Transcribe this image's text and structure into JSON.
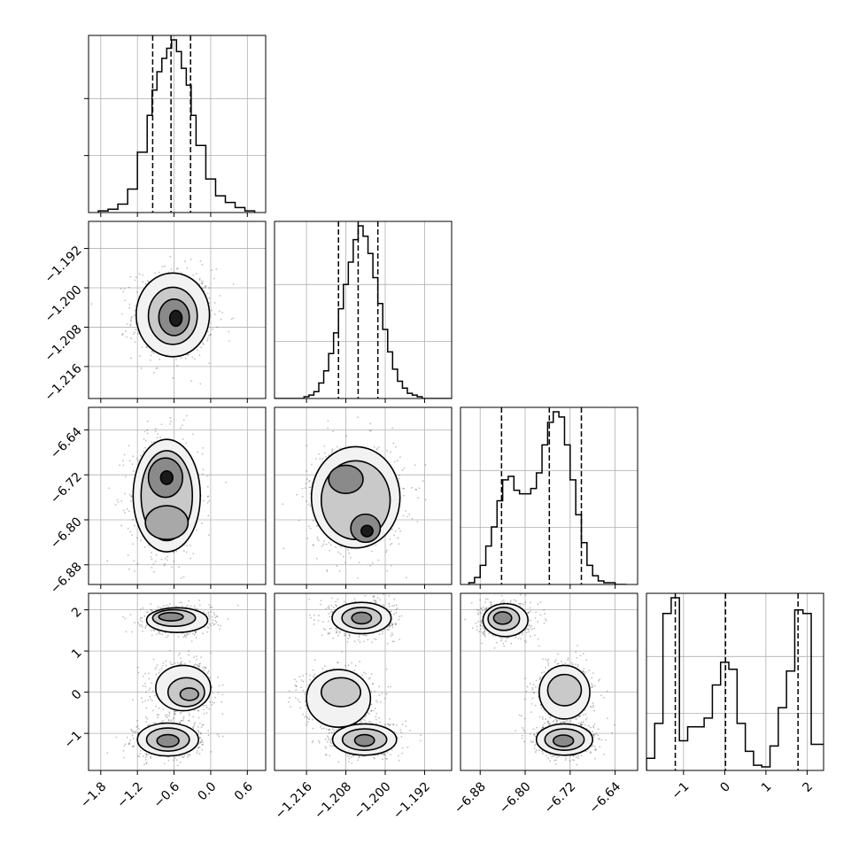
{
  "chart_data": {
    "type": "corner",
    "description_note": "",
    "parameters": [
      {
        "range": [
          -2.0,
          0.9
        ],
        "ticks": [
          -1.8,
          -1.2,
          -0.6,
          0.0,
          0.6
        ],
        "tick_labels": [
          "−1.8",
          "−1.2",
          "−0.6",
          "0.0",
          "0.6"
        ],
        "quantiles": [
          -0.95,
          -0.65,
          -0.33
        ],
        "histogram": {
          "edges": [
            -1.84,
            -1.68,
            -1.52,
            -1.36,
            -1.2,
            -1.04,
            -0.96,
            -0.88,
            -0.8,
            -0.72,
            -0.64,
            -0.56,
            -0.48,
            -0.4,
            -0.32,
            -0.24,
            -0.08,
            0.08,
            0.24,
            0.4,
            0.56,
            0.72
          ],
          "counts": [
            1,
            2,
            5,
            14,
            36,
            58,
            73,
            84,
            92,
            98,
            103,
            96,
            86,
            76,
            58,
            40,
            20,
            10,
            6,
            3,
            1
          ]
        }
      },
      {
        "range": [
          -1.2225,
          -1.1865
        ],
        "ticks": [
          -1.216,
          -1.208,
          -1.2,
          -1.192
        ],
        "tick_labels": [
          "−1.216",
          "−1.208",
          "−1.200",
          "−1.192"
        ],
        "quantiles": [
          -1.2095,
          -1.2055,
          -1.2015
        ],
        "histogram": {
          "edges": [
            -1.2225,
            -1.2215,
            -1.2205,
            -1.2195,
            -1.2185,
            -1.2175,
            -1.2165,
            -1.2155,
            -1.2145,
            -1.2135,
            -1.2125,
            -1.2115,
            -1.2105,
            -1.2095,
            -1.2085,
            -1.2075,
            -1.2065,
            -1.2055,
            -1.2045,
            -1.2035,
            -1.2025,
            -1.2015,
            -1.2005,
            -1.1995,
            -1.1985,
            -1.1975,
            -1.1965,
            -1.1955,
            -1.1945,
            -1.1935,
            -1.1925,
            -1.1915,
            -1.1905,
            -1.1895,
            -1.1885,
            -1.1875,
            -1.1865
          ],
          "counts": [
            0,
            0,
            0,
            0,
            0,
            0,
            1,
            2,
            4,
            9,
            16,
            26,
            38,
            52,
            66,
            79,
            92,
            100,
            94,
            84,
            70,
            55,
            40,
            27,
            17,
            10,
            6,
            3,
            2,
            1,
            0,
            0,
            0,
            0,
            0,
            0
          ]
        }
      },
      {
        "range": [
          -6.915,
          -6.6
        ],
        "ticks": [
          -6.88,
          -6.8,
          -6.72,
          -6.64
        ],
        "tick_labels": [
          "−6.88",
          "−6.80",
          "−6.72",
          "−6.64"
        ],
        "quantiles": [
          -6.842,
          -6.757,
          -6.7
        ],
        "histogram": {
          "edges": [
            -6.9,
            -6.89,
            -6.88,
            -6.87,
            -6.86,
            -6.85,
            -6.84,
            -6.83,
            -6.82,
            -6.81,
            -6.8,
            -6.79,
            -6.78,
            -6.77,
            -6.76,
            -6.75,
            -6.74,
            -6.73,
            -6.72,
            -6.71,
            -6.7,
            -6.69,
            -6.68,
            -6.67,
            -6.66,
            -6.65,
            -6.64,
            -6.63,
            -6.62
          ],
          "counts": [
            1,
            4,
            11,
            22,
            33,
            48,
            60,
            62,
            54,
            52,
            52,
            55,
            64,
            80,
            93,
            99,
            96,
            80,
            60,
            40,
            24,
            11,
            5,
            2,
            1,
            1,
            0,
            0
          ]
        }
      },
      {
        "range": [
          -1.9,
          2.4
        ],
        "ticks": [
          -1,
          0,
          1,
          2
        ],
        "tick_labels": [
          "−1",
          "0",
          "1",
          "2"
        ],
        "quantiles": [
          -1.2,
          0.02,
          1.78
        ],
        "histogram": {
          "edges": [
            -1.9,
            -1.7,
            -1.5,
            -1.3,
            -1.1,
            -0.9,
            -0.7,
            -0.5,
            -0.3,
            -0.1,
            0.1,
            0.3,
            0.5,
            0.7,
            0.9,
            1.1,
            1.3,
            1.5,
            1.7,
            1.9,
            2.1,
            2.3,
            2.5
          ],
          "counts": [
            7,
            27,
            90,
            99,
            17,
            25,
            25,
            30,
            49,
            62,
            58,
            27,
            11,
            3,
            2,
            14,
            36,
            57,
            92,
            90,
            15,
            15
          ]
        }
      }
    ],
    "scatter_pairs": [
      {
        "row": 1,
        "col": 0,
        "points": [
          {
            "x": -0.9,
            "y": -1.2055,
            "sx": 0.35,
            "sy": 0.004,
            "n": 600
          },
          {
            "x": -0.5,
            "y": -1.205,
            "sx": 0.35,
            "sy": 0.004,
            "n": 600
          }
        ],
        "contours": [
          {
            "x": -0.62,
            "y": -1.2055,
            "rx": 0.6,
            "ry": 0.0085,
            "fill": "#f2f2f2"
          },
          {
            "x": -0.62,
            "y": -1.2057,
            "rx": 0.4,
            "ry": 0.0058,
            "fill": "#c9c9c9"
          },
          {
            "x": -0.6,
            "y": -1.206,
            "rx": 0.25,
            "ry": 0.0037,
            "fill": "#8a8a8a"
          },
          {
            "x": -0.57,
            "y": -1.2062,
            "rx": 0.1,
            "ry": 0.0016,
            "fill": "#1a1a1a"
          }
        ]
      },
      {
        "row": 2,
        "col": 0,
        "contours": [
          {
            "x": -0.72,
            "y": -6.757,
            "rx": 0.55,
            "ry": 0.1,
            "fill": "#f2f2f2"
          },
          {
            "x": -0.72,
            "y": -6.757,
            "rx": 0.42,
            "ry": 0.08,
            "fill": "#c9c9c9"
          },
          {
            "x": -0.72,
            "y": -6.805,
            "rx": 0.35,
            "ry": 0.03,
            "fill": "#a8a8a8"
          },
          {
            "x": -0.74,
            "y": -6.725,
            "rx": 0.28,
            "ry": 0.035,
            "fill": "#8a8a8a"
          },
          {
            "x": -0.72,
            "y": -6.725,
            "rx": 0.1,
            "ry": 0.012,
            "fill": "#1a1a1a"
          }
        ]
      },
      {
        "row": 2,
        "col": 1,
        "contours": [
          {
            "x": -1.206,
            "y": -6.76,
            "rx": 0.009,
            "ry": 0.09,
            "fill": "#f2f2f2"
          },
          {
            "x": -1.206,
            "y": -6.765,
            "rx": 0.007,
            "ry": 0.07,
            "fill": "#c9c9c9"
          },
          {
            "x": -1.208,
            "y": -6.728,
            "rx": 0.0035,
            "ry": 0.025,
            "fill": "#8a8a8a"
          },
          {
            "x": -1.204,
            "y": -6.815,
            "rx": 0.003,
            "ry": 0.025,
            "fill": "#8a8a8a"
          },
          {
            "x": -1.2037,
            "y": -6.82,
            "rx": 0.0012,
            "ry": 0.01,
            "fill": "#1a1a1a"
          }
        ]
      },
      {
        "row": 3,
        "col": 0,
        "contours": [
          {
            "x": -0.55,
            "y": 1.75,
            "rx": 0.5,
            "ry": 0.3,
            "fill": "#f2f2f2"
          },
          {
            "x": -0.6,
            "y": 1.8,
            "rx": 0.35,
            "ry": 0.2,
            "fill": "#c9c9c9"
          },
          {
            "x": -0.65,
            "y": 1.83,
            "rx": 0.2,
            "ry": 0.1,
            "fill": "#8a8a8a"
          },
          {
            "x": -0.45,
            "y": 0.1,
            "rx": 0.45,
            "ry": 0.55,
            "fill": "#f2f2f2"
          },
          {
            "x": -0.4,
            "y": 0.0,
            "rx": 0.3,
            "ry": 0.35,
            "fill": "#c9c9c9"
          },
          {
            "x": -0.35,
            "y": -0.05,
            "rx": 0.15,
            "ry": 0.15,
            "fill": "#a8a8a8"
          },
          {
            "x": -0.7,
            "y": -1.15,
            "rx": 0.5,
            "ry": 0.4,
            "fill": "#f2f2f2"
          },
          {
            "x": -0.7,
            "y": -1.15,
            "rx": 0.35,
            "ry": 0.28,
            "fill": "#c9c9c9"
          },
          {
            "x": -0.7,
            "y": -1.18,
            "rx": 0.18,
            "ry": 0.15,
            "fill": "#8a8a8a"
          }
        ]
      },
      {
        "row": 3,
        "col": 1,
        "contours": [
          {
            "x": -1.2048,
            "y": 1.8,
            "rx": 0.006,
            "ry": 0.38,
            "fill": "#f2f2f2"
          },
          {
            "x": -1.2048,
            "y": 1.8,
            "rx": 0.004,
            "ry": 0.26,
            "fill": "#c9c9c9"
          },
          {
            "x": -1.2048,
            "y": 1.8,
            "rx": 0.002,
            "ry": 0.14,
            "fill": "#8a8a8a"
          },
          {
            "x": -1.2095,
            "y": -0.15,
            "rx": 0.0065,
            "ry": 0.7,
            "fill": "#f2f2f2"
          },
          {
            "x": -1.209,
            "y": 0.0,
            "rx": 0.004,
            "ry": 0.35,
            "fill": "#c9c9c9"
          },
          {
            "x": -1.2042,
            "y": -1.15,
            "rx": 0.0065,
            "ry": 0.38,
            "fill": "#f2f2f2"
          },
          {
            "x": -1.2042,
            "y": -1.15,
            "rx": 0.0045,
            "ry": 0.26,
            "fill": "#c9c9c9"
          },
          {
            "x": -1.2042,
            "y": -1.17,
            "rx": 0.002,
            "ry": 0.14,
            "fill": "#8a8a8a"
          }
        ]
      },
      {
        "row": 3,
        "col": 2,
        "contours": [
          {
            "x": -6.835,
            "y": 1.75,
            "rx": 0.04,
            "ry": 0.4,
            "fill": "#f2f2f2"
          },
          {
            "x": -6.838,
            "y": 1.78,
            "rx": 0.028,
            "ry": 0.28,
            "fill": "#c9c9c9"
          },
          {
            "x": -6.84,
            "y": 1.8,
            "rx": 0.016,
            "ry": 0.15,
            "fill": "#8a8a8a"
          },
          {
            "x": -6.73,
            "y": 0.0,
            "rx": 0.045,
            "ry": 0.65,
            "fill": "#f2f2f2"
          },
          {
            "x": -6.73,
            "y": 0.05,
            "rx": 0.03,
            "ry": 0.38,
            "fill": "#c9c9c9"
          },
          {
            "x": -6.73,
            "y": -1.15,
            "rx": 0.05,
            "ry": 0.38,
            "fill": "#f2f2f2"
          },
          {
            "x": -6.73,
            "y": -1.15,
            "rx": 0.035,
            "ry": 0.26,
            "fill": "#c9c9c9"
          },
          {
            "x": -6.732,
            "y": -1.18,
            "rx": 0.018,
            "ry": 0.14,
            "fill": "#8a8a8a"
          }
        ]
      }
    ]
  }
}
